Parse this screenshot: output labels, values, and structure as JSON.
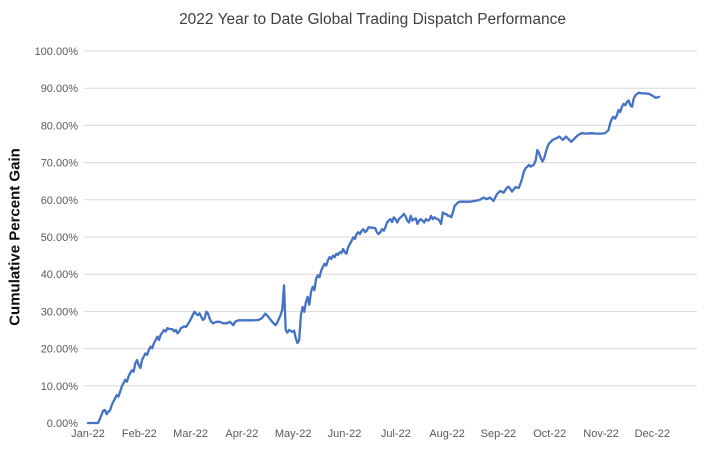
{
  "chart_data": {
    "type": "line",
    "title": "2022 Year to Date Global Trading Dispatch Performance",
    "xlabel": "",
    "ylabel": "Cumulative Percent Gain",
    "legend": "none",
    "grid": true,
    "ylim": [
      0,
      100
    ],
    "y_tick_step": 10,
    "y_tick_labels": [
      "0.00%",
      "10.00%",
      "20.00%",
      "30.00%",
      "40.00%",
      "50.00%",
      "60.00%",
      "70.00%",
      "80.00%",
      "90.00%",
      "100.00%"
    ],
    "x_tick_labels": [
      "Jan-22",
      "Feb-22",
      "Mar-22",
      "Apr-22",
      "May-22",
      "Jun-22",
      "Jul-22",
      "Aug-22",
      "Sep-22",
      "Oct-22",
      "Nov-22",
      "Dec-22"
    ],
    "colors": {
      "line": "#4472C4",
      "gridline": "#D9D9D9",
      "tick_text": "#595959",
      "title_text": "#3f3f3f",
      "axis_title_text": "#0d0d0d"
    },
    "series": [
      {
        "name": "Cumulative Percent Gain",
        "x_unit": "day_of_year_2022",
        "y_unit": "percent",
        "points": [
          [
            0,
            0
          ],
          [
            3,
            0
          ],
          [
            6,
            0
          ],
          [
            8,
            2.2
          ],
          [
            9,
            3.3
          ],
          [
            10,
            3.5
          ],
          [
            11,
            2.4
          ],
          [
            12,
            3
          ],
          [
            13,
            3.4
          ],
          [
            14,
            4.8
          ],
          [
            15,
            5.7
          ],
          [
            16,
            6.6
          ],
          [
            17,
            7.5
          ],
          [
            18,
            7.1
          ],
          [
            19,
            8.4
          ],
          [
            20,
            9.8
          ],
          [
            21,
            10.7
          ],
          [
            22,
            11.6
          ],
          [
            23,
            11.1
          ],
          [
            24,
            12.5
          ],
          [
            25,
            13.4
          ],
          [
            26,
            14.2
          ],
          [
            27,
            13.8
          ],
          [
            28,
            16
          ],
          [
            29,
            16.9
          ],
          [
            30,
            15.6
          ],
          [
            31,
            14.8
          ],
          [
            32,
            17
          ],
          [
            34,
            18.7
          ],
          [
            35,
            18.3
          ],
          [
            36,
            19.6
          ],
          [
            37,
            20.5
          ],
          [
            38,
            20.1
          ],
          [
            39,
            21.4
          ],
          [
            40,
            22.3
          ],
          [
            41,
            23.2
          ],
          [
            42,
            22.3
          ],
          [
            43,
            23.7
          ],
          [
            44,
            24.3
          ],
          [
            45,
            25
          ],
          [
            46,
            24.6
          ],
          [
            47,
            25.5
          ],
          [
            48,
            25.3
          ],
          [
            50,
            25.2
          ],
          [
            51,
            24.6
          ],
          [
            52,
            25
          ],
          [
            53,
            24.1
          ],
          [
            54,
            24.6
          ],
          [
            55,
            25.5
          ],
          [
            57,
            26
          ],
          [
            58,
            25.8
          ],
          [
            60,
            27.2
          ],
          [
            62,
            29
          ],
          [
            63,
            29.9
          ],
          [
            64,
            29.4
          ],
          [
            65,
            29
          ],
          [
            66,
            29.5
          ],
          [
            67,
            28.6
          ],
          [
            68,
            27.7
          ],
          [
            69,
            28.1
          ],
          [
            70,
            29.9
          ],
          [
            71,
            29.4
          ],
          [
            72,
            28.1
          ],
          [
            73,
            27.2
          ],
          [
            74,
            26.8
          ],
          [
            76,
            27.2
          ],
          [
            78,
            27.2
          ],
          [
            80,
            26.8
          ],
          [
            82,
            26.8
          ],
          [
            84,
            27.2
          ],
          [
            86,
            26.3
          ],
          [
            87,
            27.2
          ],
          [
            89,
            27.6
          ],
          [
            92,
            27.6
          ],
          [
            95,
            27.6
          ],
          [
            98,
            27.6
          ],
          [
            101,
            27.7
          ],
          [
            103,
            28.2
          ],
          [
            105,
            29.4
          ],
          [
            107,
            28.4
          ],
          [
            109,
            27.2
          ],
          [
            111,
            26.3
          ],
          [
            112,
            27
          ],
          [
            113,
            28
          ],
          [
            114,
            29
          ],
          [
            115,
            30.5
          ],
          [
            116,
            37
          ],
          [
            117,
            25
          ],
          [
            118,
            24.3
          ],
          [
            119,
            25
          ],
          [
            121,
            24.5
          ],
          [
            122,
            24.8
          ],
          [
            123,
            22.8
          ],
          [
            124,
            21.5
          ],
          [
            125,
            22.3
          ],
          [
            126,
            29
          ],
          [
            127,
            31.2
          ],
          [
            128,
            29.9
          ],
          [
            129,
            32.5
          ],
          [
            130,
            33.9
          ],
          [
            131,
            31.8
          ],
          [
            132,
            35.2
          ],
          [
            133,
            36.6
          ],
          [
            134,
            35.7
          ],
          [
            135,
            38.8
          ],
          [
            136,
            39.7
          ],
          [
            137,
            39.2
          ],
          [
            138,
            41
          ],
          [
            139,
            41.9
          ],
          [
            140,
            42.8
          ],
          [
            141,
            42.3
          ],
          [
            142,
            43.7
          ],
          [
            143,
            44.6
          ],
          [
            144,
            44.1
          ],
          [
            145,
            45
          ],
          [
            146,
            44.6
          ],
          [
            147,
            45.5
          ],
          [
            148,
            45.2
          ],
          [
            149,
            45.9
          ],
          [
            150,
            45.7
          ],
          [
            151,
            46.8
          ],
          [
            152,
            45.9
          ],
          [
            153,
            45.5
          ],
          [
            154,
            47.3
          ],
          [
            155,
            48.1
          ],
          [
            156,
            49
          ],
          [
            157,
            49.9
          ],
          [
            158,
            49.5
          ],
          [
            159,
            50.8
          ],
          [
            160,
            51.3
          ],
          [
            161,
            50.8
          ],
          [
            162,
            51.7
          ],
          [
            163,
            52.1
          ],
          [
            164,
            51.3
          ],
          [
            165,
            51.7
          ],
          [
            166,
            52.6
          ],
          [
            168,
            52.5
          ],
          [
            170,
            52.4
          ],
          [
            171,
            51.3
          ],
          [
            172,
            50.8
          ],
          [
            173,
            51.3
          ],
          [
            174,
            52.1
          ],
          [
            175,
            51.7
          ],
          [
            176,
            52.6
          ],
          [
            177,
            53.9
          ],
          [
            178,
            54.4
          ],
          [
            179,
            54.8
          ],
          [
            180,
            54
          ],
          [
            181,
            55.3
          ],
          [
            182,
            54.8
          ],
          [
            183,
            53.9
          ],
          [
            184,
            54.8
          ],
          [
            185,
            55.3
          ],
          [
            186,
            55.7
          ],
          [
            187,
            56.2
          ],
          [
            188,
            55.5
          ],
          [
            189,
            54.4
          ],
          [
            190,
            53.9
          ],
          [
            191,
            55.7
          ],
          [
            192,
            54.4
          ],
          [
            193,
            54.8
          ],
          [
            194,
            55
          ],
          [
            195,
            53.5
          ],
          [
            196,
            54.4
          ],
          [
            197,
            54.8
          ],
          [
            198,
            54.4
          ],
          [
            199,
            53.9
          ],
          [
            200,
            54.8
          ],
          [
            201,
            54.4
          ],
          [
            202,
            54.6
          ],
          [
            203,
            55.7
          ],
          [
            204,
            54.8
          ],
          [
            205,
            55.3
          ],
          [
            206,
            55
          ],
          [
            207,
            54.8
          ],
          [
            208,
            54.4
          ],
          [
            209,
            53.5
          ],
          [
            210,
            56.6
          ],
          [
            211,
            56.2
          ],
          [
            212,
            56.2
          ],
          [
            213,
            55.7
          ],
          [
            214,
            55.7
          ],
          [
            215,
            55.3
          ],
          [
            216,
            56.6
          ],
          [
            217,
            58.4
          ],
          [
            218,
            58.8
          ],
          [
            219,
            59.3
          ],
          [
            220,
            59.5
          ],
          [
            223,
            59.5
          ],
          [
            226,
            59.5
          ],
          [
            229,
            59.7
          ],
          [
            232,
            60
          ],
          [
            234,
            60.6
          ],
          [
            236,
            60.2
          ],
          [
            238,
            60.6
          ],
          [
            240,
            59.7
          ],
          [
            242,
            61.5
          ],
          [
            244,
            62.4
          ],
          [
            246,
            61.9
          ],
          [
            248,
            63.3
          ],
          [
            249,
            63.5
          ],
          [
            251,
            62.2
          ],
          [
            253,
            63.4
          ],
          [
            255,
            63.2
          ],
          [
            256,
            64.4
          ],
          [
            257,
            65.8
          ],
          [
            258,
            67.6
          ],
          [
            259,
            68.5
          ],
          [
            260,
            68.9
          ],
          [
            261,
            69.4
          ],
          [
            262,
            68.9
          ],
          [
            263,
            69.2
          ],
          [
            264,
            69.5
          ],
          [
            265,
            70.7
          ],
          [
            266,
            73.4
          ],
          [
            267,
            72.5
          ],
          [
            268,
            71.2
          ],
          [
            269,
            70.3
          ],
          [
            270,
            71.2
          ],
          [
            271,
            72.9
          ],
          [
            272,
            74.3
          ],
          [
            273,
            75.2
          ],
          [
            274,
            75.6
          ],
          [
            275,
            76.1
          ],
          [
            277,
            76.5
          ],
          [
            279,
            77
          ],
          [
            281,
            76.1
          ],
          [
            283,
            77
          ],
          [
            284,
            76.5
          ],
          [
            286,
            75.6
          ],
          [
            288,
            76.5
          ],
          [
            290,
            77.4
          ],
          [
            292,
            77.9
          ],
          [
            295,
            77.8
          ],
          [
            298,
            77.9
          ],
          [
            301,
            77.8
          ],
          [
            304,
            77.8
          ],
          [
            306,
            77.9
          ],
          [
            308,
            78.7
          ],
          [
            309,
            80.5
          ],
          [
            310,
            81.8
          ],
          [
            311,
            82.3
          ],
          [
            312,
            81.8
          ],
          [
            313,
            82.7
          ],
          [
            314,
            84.1
          ],
          [
            315,
            83.6
          ],
          [
            316,
            85
          ],
          [
            317,
            85.8
          ],
          [
            318,
            85.4
          ],
          [
            319,
            86.3
          ],
          [
            320,
            86.7
          ],
          [
            321,
            85.4
          ],
          [
            322,
            85
          ],
          [
            323,
            87.2
          ],
          [
            324,
            88.1
          ],
          [
            325,
            88.5
          ],
          [
            326,
            88.8
          ],
          [
            328,
            88.6
          ],
          [
            330,
            88.6
          ],
          [
            332,
            88.5
          ],
          [
            334,
            88
          ],
          [
            336,
            87.4
          ],
          [
            338,
            87.7
          ]
        ]
      }
    ]
  }
}
